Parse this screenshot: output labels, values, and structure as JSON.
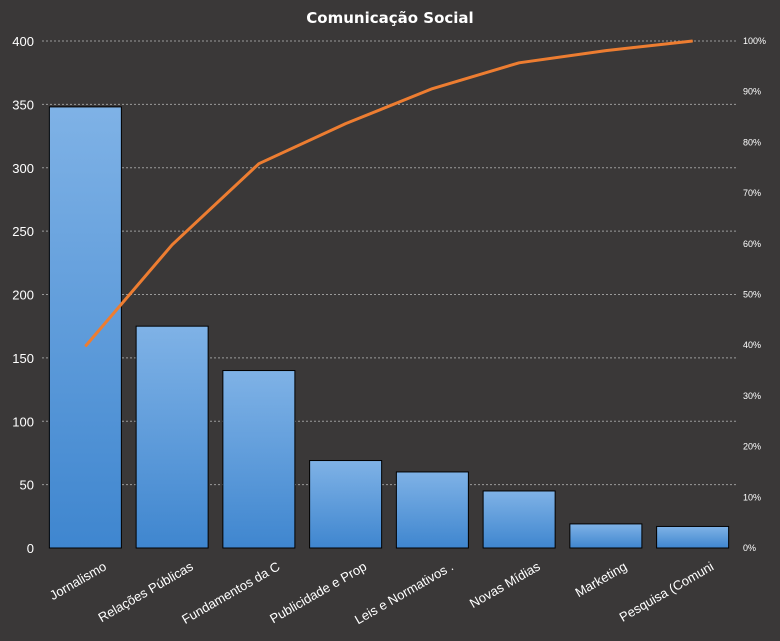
{
  "chart_data": {
    "type": "bar",
    "title": "Comunicação Social",
    "categories": [
      "Jornalismo",
      "Relações Públicas",
      "Fundamentos  da C",
      "Publicidade e Prop",
      "Leis e Normativos  .",
      "Novas Mídias",
      "Marketing",
      "Pesquisa (Comuni"
    ],
    "series": [
      {
        "type": "bar",
        "axis": "left",
        "values": [
          348,
          175,
          140,
          69,
          60,
          45,
          19,
          17
        ]
      },
      {
        "type": "line",
        "axis": "right",
        "values": [
          39.8,
          59.8,
          75.8,
          83.7,
          90.6,
          95.7,
          98.1,
          100
        ]
      }
    ],
    "y_left": {
      "ylim": [
        0,
        400
      ],
      "ticks": [
        "0",
        "50",
        "100",
        "150",
        "200",
        "250",
        "300",
        "350",
        "400"
      ]
    },
    "y_right": {
      "ylim": [
        0,
        100
      ],
      "ticks": [
        "0%",
        "10%",
        "20%",
        "30%",
        "40%",
        "50%",
        "60%",
        "70%",
        "80%",
        "90%",
        "100%"
      ]
    },
    "grid": true,
    "colors": {
      "background": "#3a3838",
      "bar": "#4a8fd6",
      "bar_top": "#7fb2e6",
      "line": "#ed7d31",
      "text": "#ffffff"
    }
  }
}
